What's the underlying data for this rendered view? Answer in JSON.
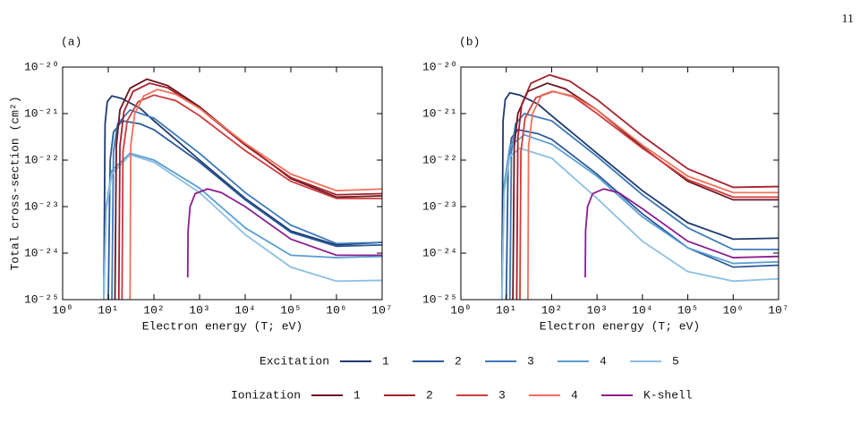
{
  "page_number": "11",
  "chart_data": [
    {
      "type": "line",
      "label": "(a)",
      "ylabel": "Total cross-section (cm²)",
      "xlabel": "Electron energy (T; eV)",
      "xscale": "log",
      "yscale": "log",
      "xlim": [
        1,
        10000000
      ],
      "ylim": [
        1e-25,
        1e-20
      ],
      "xticks": [
        {
          "value": 1,
          "label": "10⁰"
        },
        {
          "value": 10,
          "label": "10¹"
        },
        {
          "value": 100,
          "label": "10²"
        },
        {
          "value": 1000,
          "label": "10³"
        },
        {
          "value": 10000,
          "label": "10⁴"
        },
        {
          "value": 100000,
          "label": "10⁵"
        },
        {
          "value": 1000000,
          "label": "10⁶"
        },
        {
          "value": 10000000,
          "label": "10⁷"
        }
      ],
      "yticks": [
        {
          "value": 1e-25,
          "label": "10⁻²⁵"
        },
        {
          "value": 1e-24,
          "label": "10⁻²⁴"
        },
        {
          "value": 1e-23,
          "label": "10⁻²³"
        },
        {
          "value": 1e-22,
          "label": "10⁻²²"
        },
        {
          "value": 1e-21,
          "label": "10⁻²¹"
        },
        {
          "value": 1e-20,
          "label": "10⁻²⁰"
        }
      ],
      "series": [
        {
          "name": "1",
          "group": "Excitation",
          "color": "#1f3a6e",
          "x": [
            8,
            8.5,
            9.5,
            12,
            20,
            50,
            100,
            1000,
            10000,
            100000,
            1000000,
            10000000
          ],
          "values": [
            1e-25,
            6e-22,
            1.8e-21,
            2.4e-21,
            2.1e-21,
            1.3e-21,
            7e-22,
            1e-22,
            1.5e-23,
            3e-24,
            1.5e-24,
            1.7e-24
          ]
        },
        {
          "name": "2",
          "group": "Excitation",
          "color": "#2a5a9a",
          "x": [
            10,
            11,
            13,
            20,
            50,
            100,
            1000,
            10000,
            100000,
            1000000,
            10000000
          ],
          "values": [
            1e-25,
            1e-22,
            4e-22,
            7e-22,
            6e-22,
            4.5e-22,
            9e-23,
            1.4e-23,
            2.8e-24,
            1.4e-24,
            1.5e-24
          ]
        },
        {
          "name": "3",
          "group": "Excitation",
          "color": "#3d7ab8",
          "x": [
            12,
            13,
            16,
            30,
            100,
            1000,
            10000,
            100000,
            1000000,
            10000000
          ],
          "values": [
            1e-25,
            1.5e-22,
            6e-22,
            1.2e-21,
            8e-22,
            1.4e-22,
            2e-23,
            4e-24,
            1.6e-24,
            1.7e-24
          ]
        },
        {
          "name": "4",
          "group": "Excitation",
          "color": "#5a9fd4",
          "x": [
            8,
            9,
            12,
            30,
            100,
            1000,
            10000,
            100000,
            1000000,
            10000000
          ],
          "values": [
            1e-25,
            1e-23,
            6e-23,
            1.4e-22,
            1e-22,
            2.5e-23,
            3.5e-24,
            9e-25,
            8e-25,
            8.5e-25
          ]
        },
        {
          "name": "5",
          "group": "Excitation",
          "color": "#8cc0e4",
          "x": [
            8,
            9,
            12,
            30,
            100,
            1000,
            10000,
            100000,
            1000000,
            10000000
          ],
          "values": [
            1e-25,
            8e-24,
            5e-23,
            1.3e-22,
            9e-23,
            2e-23,
            2.5e-24,
            5e-25,
            2.5e-25,
            2.6e-25
          ]
        },
        {
          "name": "1",
          "group": "Ionization",
          "color": "#6b1520",
          "x": [
            14,
            15,
            18,
            30,
            70,
            200,
            1000,
            10000,
            100000,
            1000000,
            10000000
          ],
          "values": [
            1e-25,
            2e-22,
            1.2e-21,
            3.5e-21,
            5.5e-21,
            4e-21,
            1.4e-21,
            2.2e-22,
            4e-23,
            1.6e-23,
            1.7e-23
          ]
        },
        {
          "name": "2",
          "group": "Ionization",
          "color": "#a3232b",
          "x": [
            17,
            18,
            22,
            35,
            80,
            200,
            1000,
            10000,
            100000,
            1000000,
            10000000
          ],
          "values": [
            1e-25,
            2e-22,
            1.1e-21,
            3e-21,
            4.5e-21,
            3.6e-21,
            1.3e-21,
            2.1e-22,
            4.2e-23,
            1.8e-23,
            1.9e-23
          ]
        },
        {
          "name": "3",
          "group": "Ionization",
          "color": "#cf3b3b",
          "x": [
            20,
            21,
            26,
            45,
            100,
            300,
            1000,
            10000,
            100000,
            1000000,
            10000000
          ],
          "values": [
            1e-25,
            1.5e-22,
            7e-22,
            1.8e-21,
            2.5e-21,
            1.9e-21,
            9e-22,
            1.6e-22,
            3.5e-23,
            1.5e-23,
            1.5e-23
          ]
        },
        {
          "name": "4",
          "group": "Ionization",
          "color": "#f0705a",
          "x": [
            30,
            31,
            38,
            60,
            120,
            300,
            1000,
            10000,
            100000,
            1000000,
            10000000
          ],
          "values": [
            1e-25,
            2e-22,
            1e-21,
            2.4e-21,
            3.3e-21,
            2.6e-21,
            1.3e-21,
            2.3e-22,
            5e-23,
            2.2e-23,
            2.4e-23
          ]
        },
        {
          "name": "K-shell",
          "group": "Ionization",
          "color": "#8b1f8f",
          "x": [
            550,
            560,
            620,
            800,
            1500,
            3000,
            10000,
            100000,
            1000000,
            10000000
          ],
          "values": [
            3e-25,
            3e-24,
            1e-23,
            1.9e-23,
            2.4e-23,
            2e-23,
            1e-23,
            2e-24,
            9e-25,
            9e-25
          ]
        }
      ]
    },
    {
      "type": "line",
      "label": "(b)",
      "xlabel": "Electron energy (T; eV)",
      "xscale": "log",
      "yscale": "log",
      "xlim": [
        1,
        10000000
      ],
      "ylim": [
        1e-25,
        1e-20
      ],
      "xticks": [
        {
          "value": 1,
          "label": "10⁰"
        },
        {
          "value": 10,
          "label": "10¹"
        },
        {
          "value": 100,
          "label": "10²"
        },
        {
          "value": 1000,
          "label": "10³"
        },
        {
          "value": 10000,
          "label": "10⁴"
        },
        {
          "value": 100000,
          "label": "10⁵"
        },
        {
          "value": 1000000,
          "label": "10⁶"
        },
        {
          "value": 10000000,
          "label": "10⁷"
        }
      ],
      "yticks": [
        {
          "value": 1e-25,
          "label": "10⁻²⁵"
        },
        {
          "value": 1e-24,
          "label": "10⁻²⁴"
        },
        {
          "value": 1e-23,
          "label": "10⁻²³"
        },
        {
          "value": 1e-22,
          "label": "10⁻²²"
        },
        {
          "value": 1e-21,
          "label": "10⁻²¹"
        },
        {
          "value": 1e-20,
          "label": "10⁻²⁰"
        }
      ],
      "series": [
        {
          "color": "#1f3a6e",
          "x": [
            8,
            8.5,
            9.5,
            12,
            20,
            50,
            100,
            1000,
            10000,
            100000,
            1000000,
            10000000
          ],
          "values": [
            1e-25,
            7e-22,
            2e-21,
            2.8e-21,
            2.5e-21,
            1.6e-21,
            9e-22,
            1.4e-22,
            2.2e-23,
            4.5e-24,
            2e-24,
            2.1e-24
          ]
        },
        {
          "color": "#2a5a9a",
          "x": [
            10,
            11,
            13,
            18,
            50,
            100,
            1000,
            10000,
            100000,
            1000000,
            10000000
          ],
          "values": [
            1e-25,
            8e-23,
            3e-22,
            4.5e-22,
            3.7e-22,
            2.8e-22,
            5e-23,
            7e-24,
            1.3e-24,
            5e-25,
            5.5e-25
          ]
        },
        {
          "color": "#3d7ab8",
          "x": [
            12,
            13,
            16,
            25,
            100,
            1000,
            10000,
            100000,
            1000000,
            10000000
          ],
          "values": [
            1e-25,
            1.5e-22,
            6e-22,
            1e-21,
            7e-22,
            1.2e-22,
            1.8e-23,
            3.5e-24,
            1.2e-24,
            1.2e-24
          ]
        },
        {
          "color": "#5a9fd4",
          "x": [
            8,
            9,
            12,
            25,
            100,
            1000,
            10000,
            100000,
            1000000,
            10000000
          ],
          "values": [
            1e-25,
            3e-23,
            2e-22,
            3.5e-22,
            2.2e-22,
            4.5e-23,
            6e-24,
            1.3e-24,
            6e-25,
            6.5e-25
          ]
        },
        {
          "color": "#8cc0e4",
          "x": [
            8,
            9,
            12,
            20,
            100,
            1000,
            10000,
            100000,
            1000000,
            10000000
          ],
          "values": [
            1e-25,
            2e-23,
            1.2e-22,
            1.8e-22,
            1.1e-22,
            1.5e-23,
            1.8e-24,
            4e-25,
            2.5e-25,
            2.8e-25
          ]
        },
        {
          "color": "#6b1520",
          "x": [
            14,
            15,
            18,
            30,
            80,
            200,
            1000,
            10000,
            100000,
            1000000,
            10000000
          ],
          "values": [
            1e-25,
            2e-22,
            1e-21,
            3e-21,
            4.5e-21,
            3.4e-21,
            1.2e-21,
            1.9e-22,
            3.5e-23,
            1.4e-23,
            1.4e-23
          ]
        },
        {
          "color": "#a3232b",
          "x": [
            17,
            18,
            22,
            35,
            90,
            250,
            1000,
            10000,
            100000,
            1000000,
            10000000
          ],
          "values": [
            1e-25,
            3e-22,
            1.6e-21,
            4.5e-21,
            6.8e-21,
            5e-21,
            2e-21,
            3.3e-22,
            6.5e-23,
            2.6e-23,
            2.7e-23
          ]
        },
        {
          "color": "#cf3b3b",
          "x": [
            20,
            21,
            26,
            45,
            110,
            300,
            1000,
            10000,
            100000,
            1000000,
            10000000
          ],
          "values": [
            1e-25,
            1.5e-22,
            8e-22,
            2.2e-21,
            3e-21,
            2.3e-21,
            1e-21,
            1.8e-22,
            3.8e-23,
            1.6e-23,
            1.6e-23
          ]
        },
        {
          "color": "#f0705a",
          "x": [
            30,
            31,
            38,
            60,
            100,
            300,
            1000,
            10000,
            100000,
            1000000,
            10000000
          ],
          "values": [
            1e-25,
            2e-22,
            1e-21,
            2.5e-21,
            3e-21,
            2.4e-21,
            1.2e-21,
            2.1e-22,
            4.5e-23,
            2e-23,
            2e-23
          ]
        },
        {
          "color": "#8b1f8f",
          "x": [
            550,
            560,
            620,
            800,
            1400,
            3000,
            10000,
            100000,
            1000000,
            10000000
          ],
          "values": [
            3e-25,
            3e-24,
            1e-23,
            1.9e-23,
            2.4e-23,
            2e-23,
            9e-24,
            1.8e-24,
            8e-25,
            8.5e-25
          ]
        }
      ]
    }
  ]
}
